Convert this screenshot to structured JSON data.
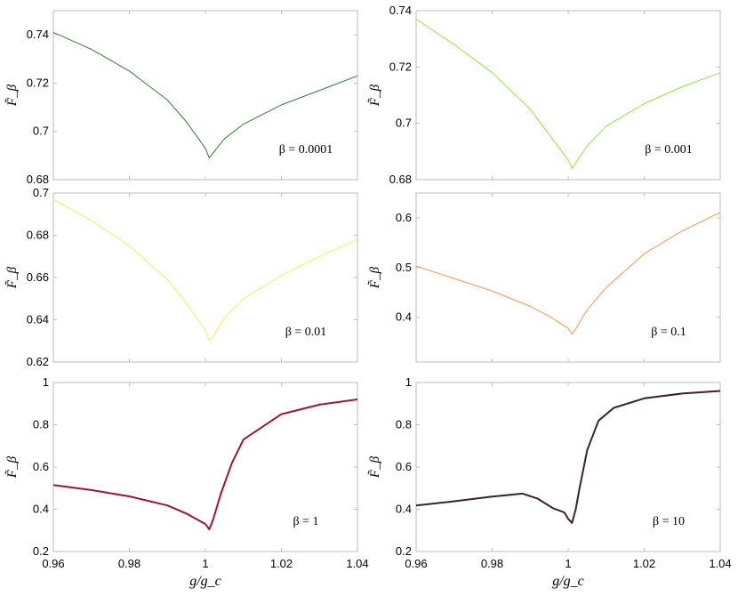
{
  "figure": {
    "xlabel": "g/g_c",
    "ylabel": "F̃_β"
  },
  "chart_data": [
    {
      "type": "line",
      "annotation": "β = 0.0001",
      "color": "#2e7d32",
      "xlim": [
        0.96,
        1.04
      ],
      "ylim": [
        0.68,
        0.75
      ],
      "xticks": [
        "",
        "",
        "",
        "",
        ""
      ],
      "yticks": [
        "0.68",
        "0.7",
        "0.72",
        "0.74"
      ],
      "ytick_values": [
        0.68,
        0.7,
        0.72,
        0.74
      ],
      "ylabel": "F̃_β",
      "xlabel": "",
      "series": [
        {
          "x": [
            0.96,
            0.97,
            0.98,
            0.99,
            0.995,
            1.0,
            1.001,
            1.002,
            1.005,
            1.01,
            1.02,
            1.03,
            1.04
          ],
          "y": [
            0.741,
            0.734,
            0.725,
            0.713,
            0.704,
            0.693,
            0.689,
            0.691,
            0.697,
            0.703,
            0.711,
            0.717,
            0.723
          ]
        }
      ]
    },
    {
      "type": "line",
      "annotation": "β = 0.001",
      "color": "#8ee63a",
      "xlim": [
        0.96,
        1.04
      ],
      "ylim": [
        0.68,
        0.74
      ],
      "xticks": [
        "",
        "",
        "",
        "",
        ""
      ],
      "yticks": [
        "0.68",
        "0.7",
        "0.72",
        "0.74"
      ],
      "ytick_values": [
        0.68,
        0.7,
        0.72,
        0.74
      ],
      "ylabel": "F̃_β",
      "xlabel": "",
      "series": [
        {
          "x": [
            0.96,
            0.97,
            0.98,
            0.99,
            0.995,
            1.0,
            1.001,
            1.002,
            1.005,
            1.01,
            1.02,
            1.03,
            1.04
          ],
          "y": [
            0.737,
            0.728,
            0.718,
            0.705,
            0.696,
            0.687,
            0.684,
            0.686,
            0.692,
            0.699,
            0.707,
            0.713,
            0.718
          ]
        }
      ]
    },
    {
      "type": "line",
      "annotation": "β = 0.01",
      "color": "#f1f05c",
      "xlim": [
        0.96,
        1.04
      ],
      "ylim": [
        0.62,
        0.7
      ],
      "xticks": [
        "",
        "",
        "",
        "",
        ""
      ],
      "yticks": [
        "0.62",
        "0.64",
        "0.66",
        "0.68",
        "0.7"
      ],
      "ytick_values": [
        0.62,
        0.64,
        0.66,
        0.68,
        0.7
      ],
      "ylabel": "F̃_β",
      "xlabel": "",
      "series": [
        {
          "x": [
            0.96,
            0.97,
            0.98,
            0.99,
            0.995,
            1.0,
            1.001,
            1.002,
            1.005,
            1.01,
            1.02,
            1.03,
            1.04
          ],
          "y": [
            0.697,
            0.687,
            0.675,
            0.659,
            0.648,
            0.635,
            0.63,
            0.632,
            0.641,
            0.65,
            0.661,
            0.67,
            0.678
          ]
        }
      ]
    },
    {
      "type": "line",
      "annotation": "β = 0.1",
      "color": "#f39a4b",
      "xlim": [
        0.96,
        1.04
      ],
      "ylim": [
        0.31,
        0.65
      ],
      "xticks": [
        "",
        "",
        "",
        "",
        ""
      ],
      "yticks": [
        "0.4",
        "0.5",
        "0.6"
      ],
      "ytick_values": [
        0.4,
        0.5,
        0.6
      ],
      "ylabel": "F̃_β",
      "xlabel": "",
      "series": [
        {
          "x": [
            0.96,
            0.97,
            0.98,
            0.99,
            0.995,
            1.0,
            1.001,
            1.002,
            1.005,
            1.01,
            1.02,
            1.03,
            1.04
          ],
          "y": [
            0.503,
            0.478,
            0.453,
            0.422,
            0.402,
            0.378,
            0.366,
            0.377,
            0.415,
            0.46,
            0.528,
            0.574,
            0.611
          ]
        }
      ]
    },
    {
      "type": "line",
      "annotation": "β = 1",
      "color": "#9e1535",
      "xlim": [
        0.96,
        1.04
      ],
      "ylim": [
        0.2,
        1.0
      ],
      "xticks": [
        "0.96",
        "0.98",
        "1",
        "1.02",
        "1.04"
      ],
      "yticks": [
        "0.2",
        "0.4",
        "0.6",
        "0.8",
        "1"
      ],
      "ytick_values": [
        0.2,
        0.4,
        0.6,
        0.8,
        1.0
      ],
      "ylabel": "F̃_β",
      "xlabel": "g/g_c",
      "series": [
        {
          "x": [
            0.96,
            0.97,
            0.98,
            0.99,
            0.995,
            1.0,
            1.001,
            1.002,
            1.004,
            1.007,
            1.01,
            1.02,
            1.03,
            1.04
          ],
          "y": [
            0.515,
            0.491,
            0.461,
            0.418,
            0.38,
            0.33,
            0.305,
            0.35,
            0.47,
            0.62,
            0.73,
            0.85,
            0.895,
            0.92
          ]
        }
      ]
    },
    {
      "type": "line",
      "annotation": "β = 10",
      "color": "#3b2226",
      "xlim": [
        0.96,
        1.04
      ],
      "ylim": [
        0.2,
        1.0
      ],
      "xticks": [
        "0.96",
        "0.98",
        "1",
        "1.02",
        "1.04"
      ],
      "yticks": [
        "0.2",
        "0.4",
        "0.6",
        "0.8",
        "1"
      ],
      "ytick_values": [
        0.2,
        0.4,
        0.6,
        0.8,
        1.0
      ],
      "ylabel": "F̃_β",
      "xlabel": "g/g_c",
      "series": [
        {
          "x": [
            0.96,
            0.97,
            0.98,
            0.988,
            0.992,
            0.996,
            0.999,
            1.0,
            1.001,
            1.002,
            1.003,
            1.005,
            1.008,
            1.012,
            1.02,
            1.03,
            1.04
          ],
          "y": [
            0.418,
            0.438,
            0.46,
            0.474,
            0.45,
            0.405,
            0.385,
            0.355,
            0.335,
            0.4,
            0.5,
            0.68,
            0.82,
            0.88,
            0.925,
            0.948,
            0.96
          ]
        }
      ]
    }
  ]
}
